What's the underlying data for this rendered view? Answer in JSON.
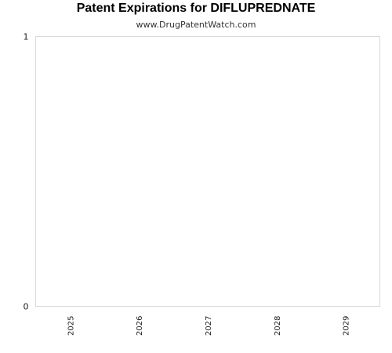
{
  "chart_data": {
    "type": "bar",
    "title": "Patent Expirations for DIFLUPREDNATE",
    "subtitle": "www.DrugPatentWatch.com",
    "categories": [
      "2025",
      "2026",
      "2027",
      "2028",
      "2029"
    ],
    "values": [
      0,
      0,
      0,
      0,
      0
    ],
    "ylim": [
      0,
      1
    ],
    "yticks": [
      "0",
      "1"
    ],
    "grid": false,
    "colors": {
      "frame": "#d9d9d9",
      "text": "#222222"
    }
  }
}
